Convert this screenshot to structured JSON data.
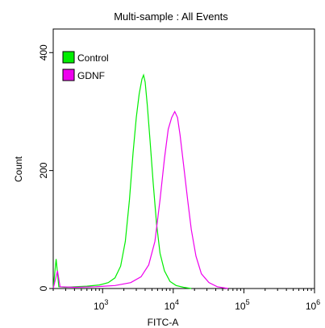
{
  "chart_data": {
    "type": "area",
    "title": "Multi-sample : All Events",
    "xlabel": "FITC-A",
    "ylabel": "Count",
    "xscale": "log",
    "xlim": [
      200,
      1000000
    ],
    "ylim": [
      0,
      440
    ],
    "yticks": [
      {
        "value": 0,
        "label": "0"
      },
      {
        "value": 200,
        "label": "200"
      },
      {
        "value": 400,
        "label": "400"
      }
    ],
    "xticks": [
      {
        "value": 1000,
        "base": "10",
        "exp": "3"
      },
      {
        "value": 10000,
        "base": "10",
        "exp": "4"
      },
      {
        "value": 100000,
        "base": "10",
        "exp": "5"
      },
      {
        "value": 1000000,
        "base": "10",
        "exp": "6"
      }
    ],
    "legend_position": "top-left",
    "grid": false,
    "series": [
      {
        "name": "Control",
        "color": "#00ee00",
        "points": [
          [
            200,
            0
          ],
          [
            220,
            50
          ],
          [
            240,
            3
          ],
          [
            300,
            2
          ],
          [
            400,
            3
          ],
          [
            600,
            4
          ],
          [
            900,
            6
          ],
          [
            1200,
            10
          ],
          [
            1500,
            18
          ],
          [
            1800,
            38
          ],
          [
            2100,
            80
          ],
          [
            2400,
            150
          ],
          [
            2700,
            230
          ],
          [
            3000,
            290
          ],
          [
            3300,
            330
          ],
          [
            3600,
            355
          ],
          [
            3800,
            362
          ],
          [
            4000,
            350
          ],
          [
            4300,
            310
          ],
          [
            4700,
            250
          ],
          [
            5200,
            180
          ],
          [
            5800,
            110
          ],
          [
            6500,
            60
          ],
          [
            7500,
            30
          ],
          [
            9000,
            12
          ],
          [
            11000,
            5
          ],
          [
            14000,
            2
          ],
          [
            18000,
            0
          ]
        ]
      },
      {
        "name": "GDNF",
        "color": "#ee00ee",
        "points": [
          [
            200,
            0
          ],
          [
            230,
            30
          ],
          [
            250,
            3
          ],
          [
            400,
            2
          ],
          [
            800,
            3
          ],
          [
            1500,
            5
          ],
          [
            2500,
            10
          ],
          [
            3500,
            20
          ],
          [
            4500,
            40
          ],
          [
            5500,
            80
          ],
          [
            6500,
            150
          ],
          [
            7500,
            220
          ],
          [
            8500,
            270
          ],
          [
            9500,
            290
          ],
          [
            10500,
            300
          ],
          [
            11500,
            290
          ],
          [
            12500,
            260
          ],
          [
            14000,
            210
          ],
          [
            16000,
            150
          ],
          [
            18000,
            100
          ],
          [
            21000,
            55
          ],
          [
            25000,
            25
          ],
          [
            32000,
            10
          ],
          [
            42000,
            3
          ],
          [
            60000,
            0
          ]
        ]
      }
    ]
  }
}
